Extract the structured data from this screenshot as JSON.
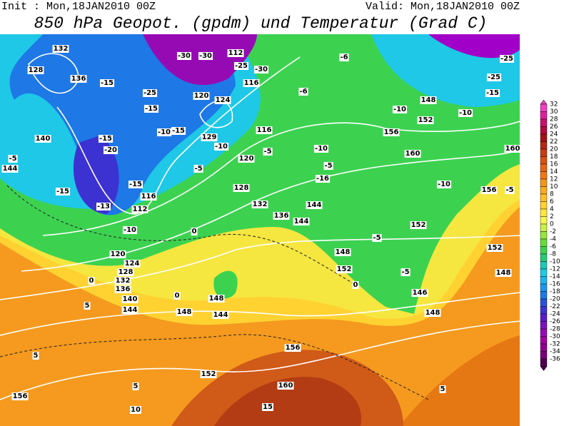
{
  "header": {
    "init": "Init : Mon,18JAN2010 00Z",
    "valid": "Valid: Mon,18JAN2010 00Z",
    "title": "850 hPa Geopot. (gpdm) und Temperatur (Grad C)"
  },
  "map_labels": [
    "132",
    "128",
    "136",
    "-15",
    "-25",
    "-15",
    "-30",
    "-30",
    "112",
    "-25",
    "-30",
    "116",
    "120",
    "124",
    "-6",
    "-6",
    "-25",
    "-25",
    "-15",
    "148",
    "-10",
    "-10",
    "152",
    "156",
    "160",
    "160",
    "-10",
    "156",
    "-5",
    "140",
    "-15",
    "-20",
    "-5",
    "144",
    "-15",
    "-13",
    "112",
    "-10",
    "116",
    "-15",
    "-10",
    "-15",
    "129",
    "-10",
    "116",
    "-5",
    "120",
    "-5",
    "128",
    "132",
    "136",
    "144",
    "-5",
    "-10",
    "-16",
    "144",
    "148",
    "152",
    "152",
    "-5",
    "152",
    "148",
    "0",
    "0",
    "120",
    "124",
    "128",
    "132",
    "136",
    "140",
    "144",
    "148",
    "148",
    "144",
    "0",
    "156",
    "152",
    "160",
    "156",
    "10",
    "15",
    "5",
    "5",
    "5",
    "5",
    "148",
    "146",
    "-5",
    "0"
  ],
  "colorbar": {
    "levels": [
      32,
      30,
      28,
      26,
      24,
      22,
      20,
      18,
      16,
      14,
      12,
      10,
      8,
      6,
      4,
      2,
      0,
      -2,
      -4,
      -6,
      -8,
      -10,
      -12,
      -14,
      -16,
      -18,
      -20,
      -22,
      -24,
      -26,
      -28,
      -30,
      -32,
      -34,
      -36
    ],
    "colors": [
      "#f040c0",
      "#e0209a",
      "#c8106e",
      "#b40a3c",
      "#a01414",
      "#b42814",
      "#c83c14",
      "#dc5014",
      "#e66414",
      "#f07814",
      "#f59619",
      "#faaa1e",
      "#ffbe28",
      "#ffd232",
      "#ffe63c",
      "#f5f550",
      "#c8f046",
      "#96e63c",
      "#64dc3c",
      "#3cd250",
      "#28c878",
      "#1ec8b4",
      "#1ec8e6",
      "#1eb4f0",
      "#1e96f0",
      "#1e78e6",
      "#2850dc",
      "#3c32d2",
      "#5a1ec8",
      "#7814be",
      "#960ab4",
      "#a000a0",
      "#8c008c",
      "#780078",
      "#500050"
    ]
  }
}
